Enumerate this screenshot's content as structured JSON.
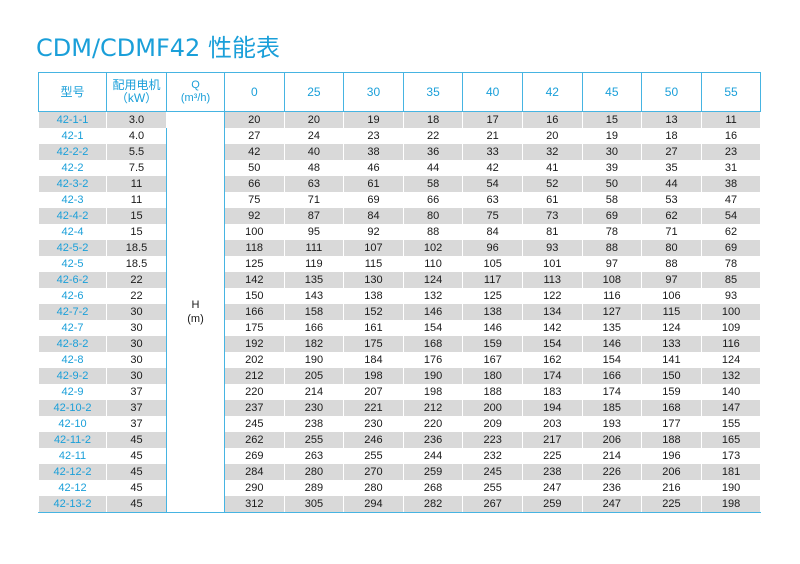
{
  "title": "CDM/CDMF42 性能表",
  "headers": {
    "model": "型号",
    "power_line1": "配用电机",
    "power_line2": "（kW）",
    "q_line1": "Q",
    "q_line2": "(m³/h)",
    "flows": [
      "0",
      "25",
      "30",
      "35",
      "40",
      "42",
      "45",
      "50",
      "55"
    ]
  },
  "h_label_line1": "H",
  "h_label_line2": "(m)",
  "rows": [
    {
      "model": "42-1-1",
      "power": "3.0",
      "h": [
        "20",
        "20",
        "19",
        "18",
        "17",
        "16",
        "15",
        "13",
        "11"
      ]
    },
    {
      "model": "42-1",
      "power": "4.0",
      "h": [
        "27",
        "24",
        "23",
        "22",
        "21",
        "20",
        "19",
        "18",
        "16"
      ]
    },
    {
      "model": "42-2-2",
      "power": "5.5",
      "h": [
        "42",
        "40",
        "38",
        "36",
        "33",
        "32",
        "30",
        "27",
        "23"
      ]
    },
    {
      "model": "42-2",
      "power": "7.5",
      "h": [
        "50",
        "48",
        "46",
        "44",
        "42",
        "41",
        "39",
        "35",
        "31"
      ]
    },
    {
      "model": "42-3-2",
      "power": "11",
      "h": [
        "66",
        "63",
        "61",
        "58",
        "54",
        "52",
        "50",
        "44",
        "38"
      ]
    },
    {
      "model": "42-3",
      "power": "11",
      "h": [
        "75",
        "71",
        "69",
        "66",
        "63",
        "61",
        "58",
        "53",
        "47"
      ]
    },
    {
      "model": "42-4-2",
      "power": "15",
      "h": [
        "92",
        "87",
        "84",
        "80",
        "75",
        "73",
        "69",
        "62",
        "54"
      ]
    },
    {
      "model": "42-4",
      "power": "15",
      "h": [
        "100",
        "95",
        "92",
        "88",
        "84",
        "81",
        "78",
        "71",
        "62"
      ]
    },
    {
      "model": "42-5-2",
      "power": "18.5",
      "h": [
        "118",
        "111",
        "107",
        "102",
        "96",
        "93",
        "88",
        "80",
        "69"
      ]
    },
    {
      "model": "42-5",
      "power": "18.5",
      "h": [
        "125",
        "119",
        "115",
        "110",
        "105",
        "101",
        "97",
        "88",
        "78"
      ]
    },
    {
      "model": "42-6-2",
      "power": "22",
      "h": [
        "142",
        "135",
        "130",
        "124",
        "117",
        "113",
        "108",
        "97",
        "85"
      ]
    },
    {
      "model": "42-6",
      "power": "22",
      "h": [
        "150",
        "143",
        "138",
        "132",
        "125",
        "122",
        "116",
        "106",
        "93"
      ]
    },
    {
      "model": "42-7-2",
      "power": "30",
      "h": [
        "166",
        "158",
        "152",
        "146",
        "138",
        "134",
        "127",
        "115",
        "100"
      ]
    },
    {
      "model": "42-7",
      "power": "30",
      "h": [
        "175",
        "166",
        "161",
        "154",
        "146",
        "142",
        "135",
        "124",
        "109"
      ]
    },
    {
      "model": "42-8-2",
      "power": "30",
      "h": [
        "192",
        "182",
        "175",
        "168",
        "159",
        "154",
        "146",
        "133",
        "116"
      ]
    },
    {
      "model": "42-8",
      "power": "30",
      "h": [
        "202",
        "190",
        "184",
        "176",
        "167",
        "162",
        "154",
        "141",
        "124"
      ]
    },
    {
      "model": "42-9-2",
      "power": "30",
      "h": [
        "212",
        "205",
        "198",
        "190",
        "180",
        "174",
        "166",
        "150",
        "132"
      ]
    },
    {
      "model": "42-9",
      "power": "37",
      "h": [
        "220",
        "214",
        "207",
        "198",
        "188",
        "183",
        "174",
        "159",
        "140"
      ]
    },
    {
      "model": "42-10-2",
      "power": "37",
      "h": [
        "237",
        "230",
        "221",
        "212",
        "200",
        "194",
        "185",
        "168",
        "147"
      ]
    },
    {
      "model": "42-10",
      "power": "37",
      "h": [
        "245",
        "238",
        "230",
        "220",
        "209",
        "203",
        "193",
        "177",
        "155"
      ]
    },
    {
      "model": "42-11-2",
      "power": "45",
      "h": [
        "262",
        "255",
        "246",
        "236",
        "223",
        "217",
        "206",
        "188",
        "165"
      ]
    },
    {
      "model": "42-11",
      "power": "45",
      "h": [
        "269",
        "263",
        "255",
        "244",
        "232",
        "225",
        "214",
        "196",
        "173"
      ]
    },
    {
      "model": "42-12-2",
      "power": "45",
      "h": [
        "284",
        "280",
        "270",
        "259",
        "245",
        "238",
        "226",
        "206",
        "181"
      ]
    },
    {
      "model": "42-12",
      "power": "45",
      "h": [
        "290",
        "289",
        "280",
        "268",
        "255",
        "247",
        "236",
        "216",
        "190"
      ]
    },
    {
      "model": "42-13-2",
      "power": "45",
      "h": [
        "312",
        "305",
        "294",
        "282",
        "267",
        "259",
        "247",
        "225",
        "198"
      ]
    }
  ]
}
